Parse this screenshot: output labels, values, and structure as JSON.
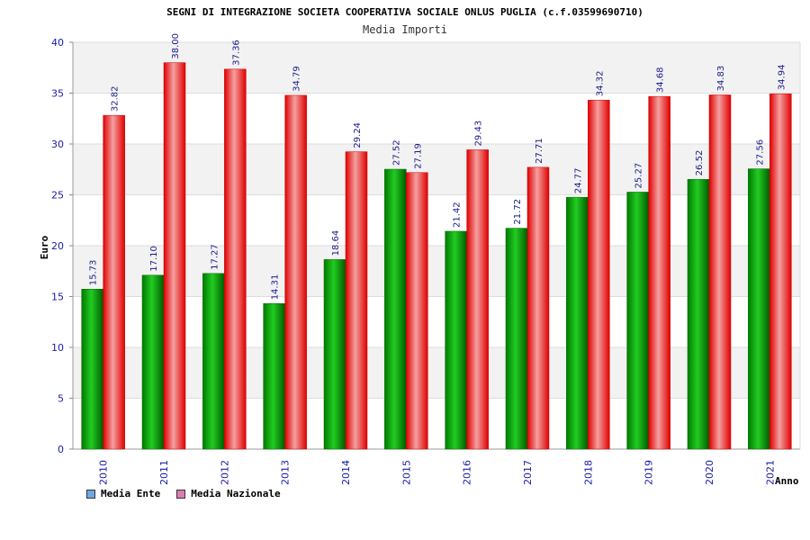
{
  "chart_data": {
    "type": "bar",
    "title": "SEGNI DI INTEGRAZIONE SOCIETA COOPERATIVA SOCIALE ONLUS PUGLIA (c.f.03599690710)",
    "subtitle": "Media Importi",
    "xlabel": "Anno",
    "ylabel": "Euro",
    "ylim": [
      0,
      40
    ],
    "yticks": [
      "0",
      "5",
      "10",
      "15",
      "20",
      "25",
      "30",
      "35",
      "40"
    ],
    "grid": true,
    "legend_position": "bottom-left",
    "categories": [
      "2010",
      "2011",
      "2012",
      "2013",
      "2014",
      "2015",
      "2016",
      "2017",
      "2018",
      "2019",
      "2020",
      "2021"
    ],
    "series": [
      {
        "name": "Media Ente",
        "color": "#00aa00",
        "legend_color": "#6ea6e8",
        "values": [
          15.73,
          17.1,
          17.27,
          14.31,
          18.64,
          27.52,
          21.42,
          21.72,
          24.77,
          25.27,
          26.52,
          27.56
        ],
        "labels": [
          "15.73",
          "17.10",
          "17.27",
          "14.31",
          "18.64",
          "27.52",
          "21.42",
          "21.72",
          "24.77",
          "25.27",
          "26.52",
          "27.56"
        ]
      },
      {
        "name": "Media Nazionale",
        "color": "#ee1111",
        "legend_color": "#e07ab4",
        "values": [
          32.82,
          38.0,
          37.36,
          34.79,
          29.24,
          27.19,
          29.43,
          27.71,
          34.32,
          34.68,
          34.83,
          34.94
        ],
        "labels": [
          "32.82",
          "38.00",
          "37.36",
          "34.79",
          "29.24",
          "27.19",
          "29.43",
          "27.71",
          "34.32",
          "34.68",
          "34.83",
          "34.94"
        ]
      }
    ]
  }
}
